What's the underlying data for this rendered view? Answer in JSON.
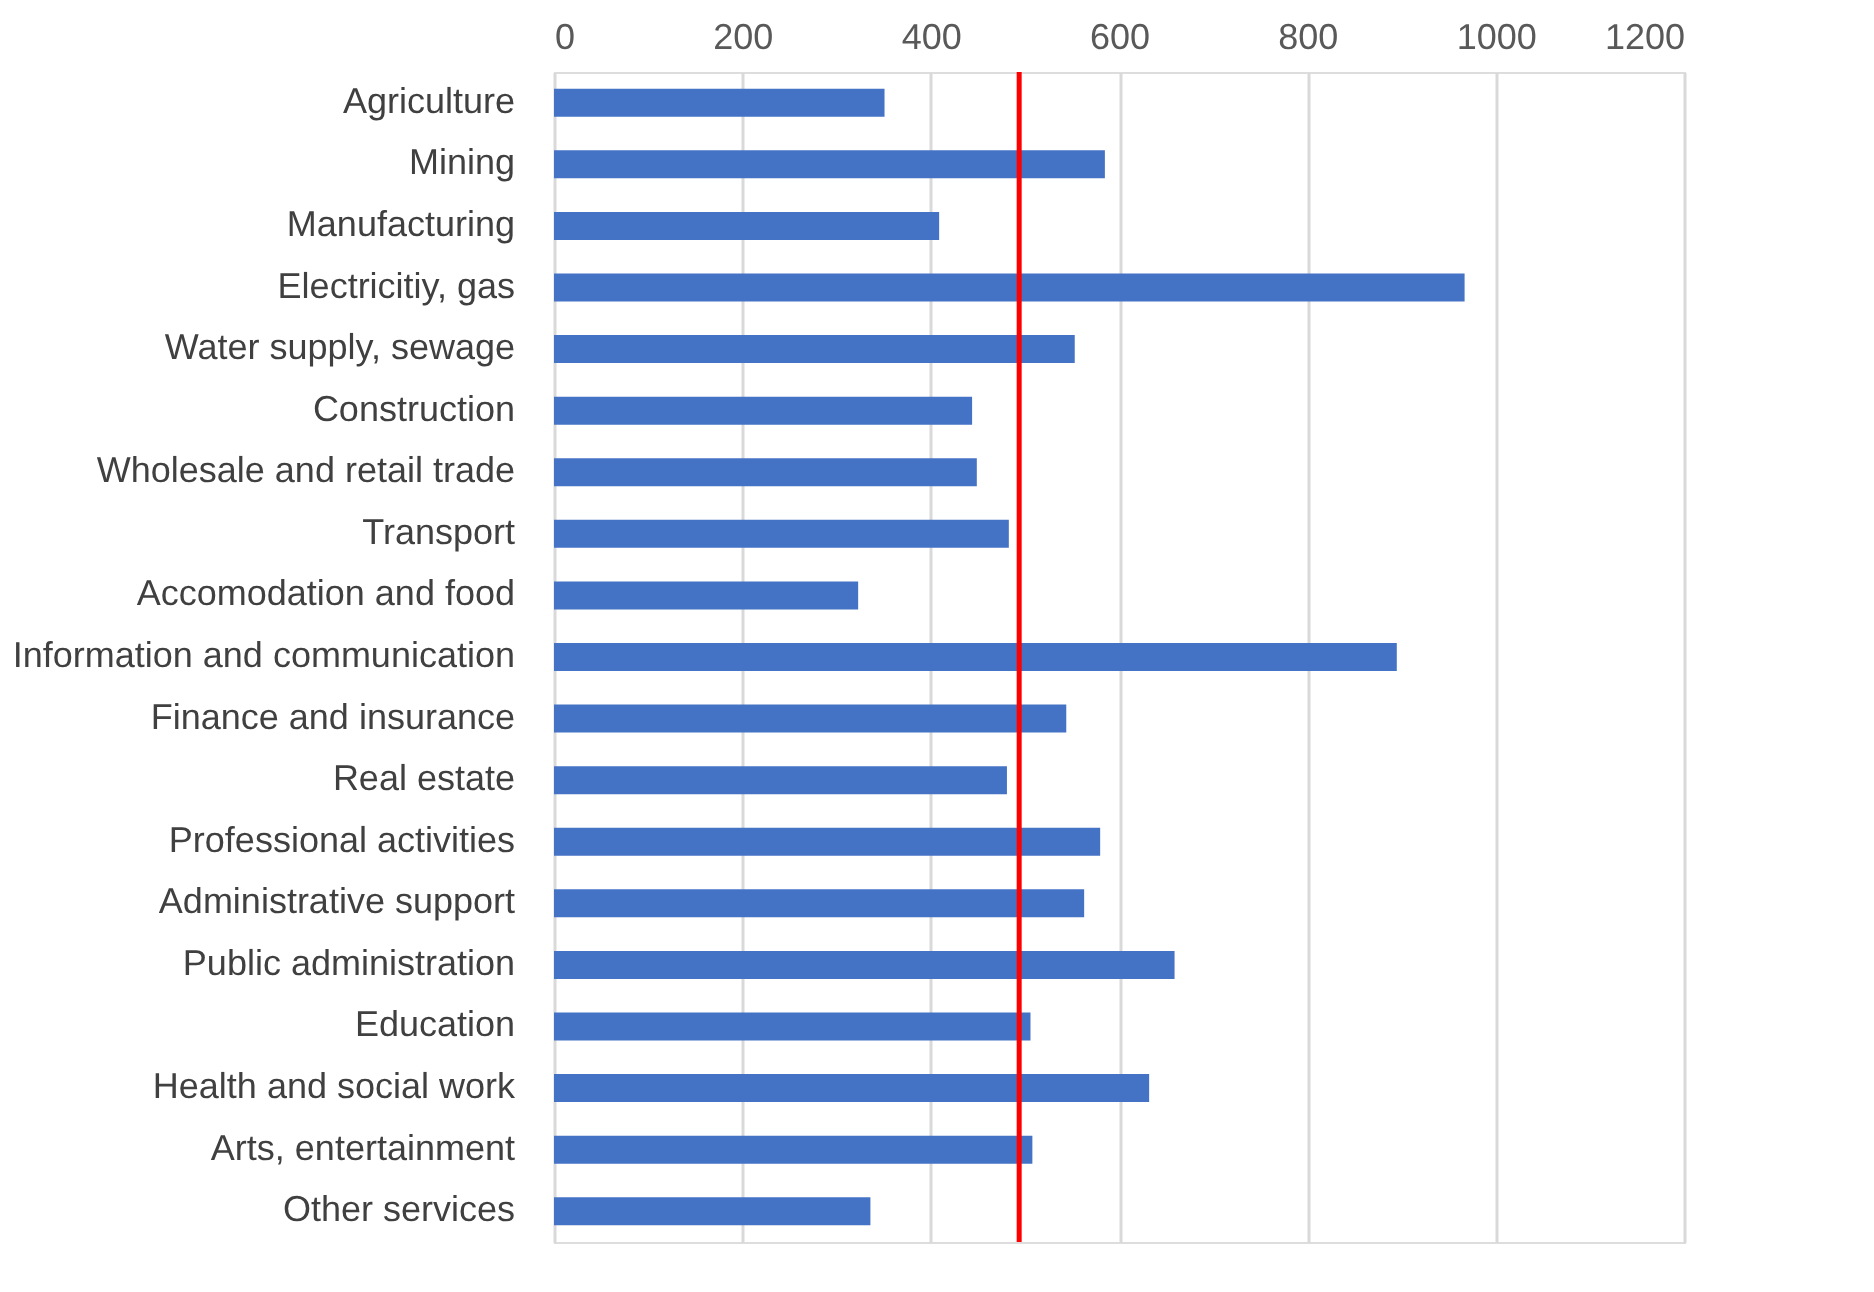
{
  "chart_data": {
    "type": "bar",
    "orientation": "horizontal",
    "categories": [
      "Agriculture",
      "Mining",
      "Manufacturing ",
      "Electricitiy, gas",
      "Water supply, sewage",
      "Construction",
      "Wholesale and retail trade",
      "Transport",
      "Accomodation and food",
      "Information and communication",
      "Finance and insurance",
      "Real estate",
      "Professional activities",
      "Administrative support",
      "Public administration",
      "Education",
      "Health and social work",
      "Arts, entertainment",
      "Other services "
    ],
    "values": [
      351,
      585,
      409,
      967,
      553,
      444,
      449,
      483,
      323,
      895,
      544,
      481,
      580,
      563,
      659,
      506,
      632,
      508,
      336
    ],
    "color": "#4472c4",
    "xlim": [
      0,
      1200
    ],
    "xticks": [
      0,
      200,
      400,
      600,
      800,
      1000,
      1200
    ],
    "grid": "x",
    "ref_lines": [
      {
        "axis": "x",
        "value": 494,
        "color": "#ff0000"
      }
    ]
  }
}
